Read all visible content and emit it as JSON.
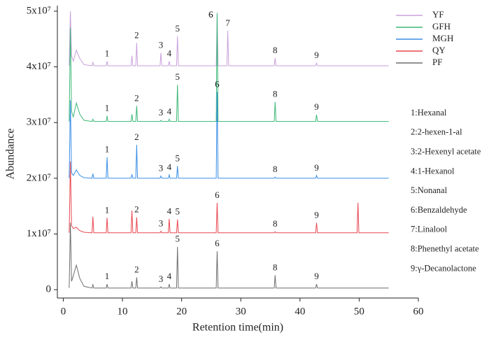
{
  "chart_data": {
    "type": "line",
    "xlabel": "Retention time(min)",
    "ylabel": "Abundance",
    "xlim": [
      -1,
      60
    ],
    "ylim": [
      -1500000.0,
      51000000.0
    ],
    "xticks": [
      0,
      10,
      20,
      30,
      40,
      50,
      60
    ],
    "yticks": [
      0,
      {
        "value": 10000000.0,
        "label": "1x10⁷"
      },
      {
        "value": 20000000.0,
        "label": "2x10⁷"
      },
      {
        "value": 30000000.0,
        "label": "3x10⁷"
      },
      {
        "value": 40000000.0,
        "label": "4x10⁷"
      },
      {
        "value": 50000000.0,
        "label": "5x10⁷"
      }
    ],
    "legend": "upper right",
    "x": [
      1.0,
      1.2,
      1.4,
      1.7,
      2.2,
      2.8,
      3.5,
      4.85,
      5.0,
      5.15,
      7.25,
      7.4,
      7.55,
      11.45,
      11.6,
      11.75,
      12.25,
      12.4,
      12.55,
      16.35,
      16.5,
      16.65,
      17.75,
      17.9,
      18.05,
      19.15,
      19.3,
      19.45,
      25.85,
      26.0,
      26.15,
      27.65,
      27.8,
      27.95,
      35.65,
      35.8,
      35.95,
      42.65,
      42.8,
      42.95,
      49.65,
      49.8,
      49.95,
      55
    ],
    "series": [
      {
        "name": "YF",
        "color": "#c9a0dc",
        "values": [
          40200000.0,
          50000000.0,
          42000000.0,
          41000000.0,
          43000000.0,
          41500000.0,
          40400000.0,
          40200000.0,
          40800000.0,
          40200000.0,
          40200000.0,
          41000000.0,
          40200000.0,
          40200000.0,
          42000000.0,
          40200000.0,
          40200000.0,
          44300000.0,
          40200000.0,
          40200000.0,
          42500000.0,
          40200000.0,
          40200000.0,
          41000000.0,
          40200000.0,
          40200000.0,
          45500000.0,
          40200000.0,
          40200000.0,
          49500000.0,
          40200000.0,
          40200000.0,
          46500000.0,
          40200000.0,
          40200000.0,
          41600000.0,
          40200000.0,
          40200000.0,
          40700000.0,
          40200000.0,
          40200000.0,
          40200000.0,
          40200000.0,
          40200000.0
        ],
        "peak_labels": [
          "1",
          "2",
          "3",
          "4",
          "5",
          "6",
          "7",
          "8",
          "9"
        ],
        "peak_x": [
          7.4,
          12.4,
          16.5,
          17.9,
          19.3,
          26.0,
          27.8,
          35.8,
          42.8
        ]
      },
      {
        "name": "GFH",
        "color": "#3cb878",
        "values": [
          30200000.0,
          47000000.0,
          32000000.0,
          31000000.0,
          33500000.0,
          31500000.0,
          30400000.0,
          30200000.0,
          30600000.0,
          30200000.0,
          30200000.0,
          31200000.0,
          30200000.0,
          30200000.0,
          31500000.0,
          30200000.0,
          30200000.0,
          33000000.0,
          30200000.0,
          30200000.0,
          30400000.0,
          30200000.0,
          30200000.0,
          30600000.0,
          30200000.0,
          30200000.0,
          36800000.0,
          30200000.0,
          30200000.0,
          49700000.0,
          30200000.0,
          30200000.0,
          30200000.0,
          30200000.0,
          30200000.0,
          33700000.0,
          30200000.0,
          30200000.0,
          31400000.0,
          30200000.0,
          30200000.0,
          30200000.0,
          30200000.0,
          30200000.0
        ],
        "peak_labels": [
          "1",
          "2",
          "3",
          "4",
          "5",
          "6",
          "8",
          "9"
        ],
        "peak_x": [
          7.4,
          12.4,
          16.5,
          17.9,
          19.3,
          26.0,
          35.8,
          42.8
        ]
      },
      {
        "name": "MGH",
        "color": "#3a8ee6",
        "values": [
          20000000.0,
          34000000.0,
          21000000.0,
          20500000.0,
          21500000.0,
          20500000.0,
          20100000.0,
          20000000.0,
          20800000.0,
          20000000.0,
          20000000.0,
          23800000.0,
          20000000.0,
          20000000.0,
          20700000.0,
          20000000.0,
          20000000.0,
          26000000.0,
          20000000.0,
          20000000.0,
          20400000.0,
          20000000.0,
          20000000.0,
          20600000.0,
          20000000.0,
          20000000.0,
          22200000.0,
          20000000.0,
          20000000.0,
          35500000.0,
          20000000.0,
          20000000.0,
          20000000.0,
          20000000.0,
          20000000.0,
          20200000.0,
          20000000.0,
          20000000.0,
          20500000.0,
          20000000.0,
          20000000.0,
          20000000.0,
          20000000.0,
          20000000.0
        ],
        "peak_labels": [
          "1",
          "2",
          "3",
          "4",
          "5",
          "6",
          "8",
          "9"
        ],
        "peak_x": [
          7.4,
          12.4,
          16.5,
          17.9,
          19.3,
          26.0,
          35.8,
          42.8
        ]
      },
      {
        "name": "QY",
        "color": "#e8474f",
        "values": [
          10200000.0,
          23000000.0,
          11500000.0,
          11000000.0,
          11200000.0,
          10600000.0,
          10300000.0,
          10200000.0,
          13100000.0,
          10200000.0,
          10200000.0,
          12900000.0,
          10200000.0,
          10200000.0,
          14200000.0,
          10200000.0,
          10200000.0,
          13000000.0,
          10200000.0,
          10200000.0,
          10500000.0,
          10200000.0,
          10200000.0,
          12700000.0,
          10200000.0,
          10200000.0,
          12600000.0,
          10200000.0,
          10200000.0,
          15600000.0,
          10200000.0,
          10200000.0,
          10200000.0,
          10200000.0,
          10200000.0,
          10400000.0,
          10200000.0,
          10200000.0,
          12000000.0,
          10200000.0,
          10200000.0,
          15600000.0,
          10200000.0,
          10200000.0
        ],
        "peak_labels": [
          "1",
          "2",
          "3",
          "4",
          "5",
          "6",
          "8",
          "9"
        ],
        "peak_x": [
          7.4,
          12.4,
          16.5,
          17.9,
          19.3,
          26.0,
          35.8,
          42.8
        ]
      },
      {
        "name": "PF",
        "color": "#6e6e6e",
        "values": [
          300000.0,
          12000000.0,
          1500000.0,
          2500000.0,
          4400000.0,
          2000000.0,
          600000.0,
          300000.0,
          900000.0,
          300000.0,
          300000.0,
          1000000.0,
          300000.0,
          300000.0,
          1500000.0,
          300000.0,
          300000.0,
          2200000.0,
          300000.0,
          300000.0,
          500000.0,
          300000.0,
          300000.0,
          1000000.0,
          300000.0,
          300000.0,
          7700000.0,
          300000.0,
          300000.0,
          6900000.0,
          300000.0,
          300000.0,
          300000.0,
          300000.0,
          300000.0,
          2600000.0,
          300000.0,
          300000.0,
          1000000.0,
          300000.0,
          300000.0,
          300000.0,
          300000.0,
          300000.0
        ],
        "peak_labels": [
          "1",
          "2",
          "3",
          "4",
          "5",
          "6",
          "8",
          "9"
        ],
        "peak_x": [
          7.4,
          12.4,
          16.5,
          17.9,
          19.3,
          26.0,
          35.8,
          42.8
        ]
      }
    ],
    "compound_key": [
      "1:Hexanal",
      "2:2-hexen-1-al",
      "3:2-Hexenyl acetate",
      "4:1-Hexanol",
      "5:Nonanal",
      "6:Benzaldehyde",
      "7:Linalool",
      "8:Phenethyl acetate",
      "9:γ-Decanolactone"
    ]
  }
}
